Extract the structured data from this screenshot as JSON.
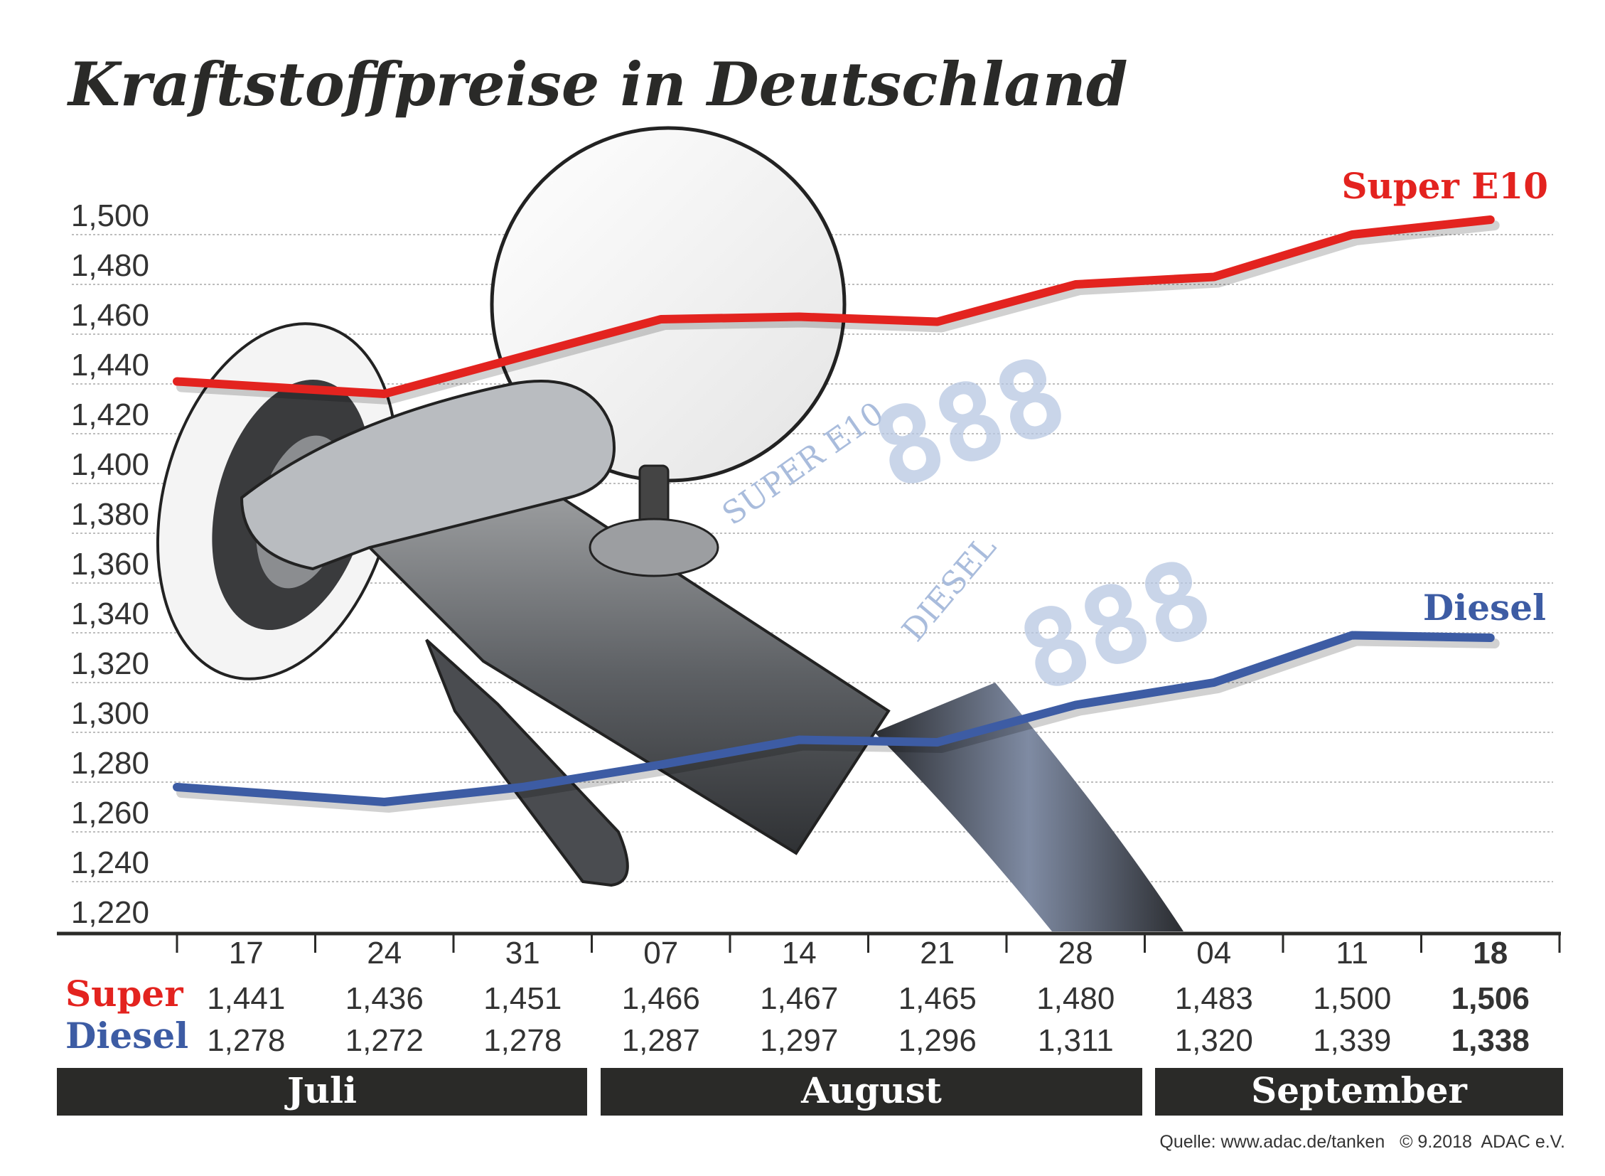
{
  "chart_data": {
    "type": "line",
    "title": "Kraftstoffpreise in Deutschland",
    "categories": [
      "17",
      "24",
      "31",
      "07",
      "14",
      "21",
      "28",
      "04",
      "11",
      "18"
    ],
    "months": [
      {
        "label": "Juli",
        "weeks": 3
      },
      {
        "label": "August",
        "weeks": 4
      },
      {
        "label": "September",
        "weeks": 3
      }
    ],
    "ylim": [
      1.22,
      1.5
    ],
    "yticks": [
      "1,500",
      "1,480",
      "1,460",
      "1,440",
      "1,420",
      "1,400",
      "1,380",
      "1,360",
      "1,340",
      "1,320",
      "1,300",
      "1,280",
      "1,260",
      "1,240",
      "1,220"
    ],
    "grid": true,
    "series": [
      {
        "name": "Super E10",
        "row_label": "Super",
        "color": "#e3231f",
        "values": [
          1.441,
          1.436,
          1.451,
          1.466,
          1.467,
          1.465,
          1.48,
          1.483,
          1.5,
          1.506
        ],
        "labels": [
          "1,441",
          "1,436",
          "1,451",
          "1,466",
          "1,467",
          "1,465",
          "1,480",
          "1,483",
          "1,500",
          "1,506"
        ]
      },
      {
        "name": "Diesel",
        "row_label": "Diesel",
        "color": "#3d5ca4",
        "values": [
          1.278,
          1.272,
          1.278,
          1.287,
          1.297,
          1.296,
          1.311,
          1.32,
          1.339,
          1.338
        ],
        "labels": [
          "1,278",
          "1,272",
          "1,278",
          "1,287",
          "1,297",
          "1,296",
          "1,311",
          "1,320",
          "1,339",
          "1,338"
        ]
      }
    ],
    "highlight_last": true
  },
  "illustration": {
    "display_label_1": "SUPER E10",
    "display_label_2": "DIESEL",
    "digits": "888"
  },
  "source": "Quelle: www.adac.de/tanken   © 9.2018  ADAC e.V.",
  "colors": {
    "dark": "#2a2a28",
    "grid": "#bdbdbd"
  }
}
